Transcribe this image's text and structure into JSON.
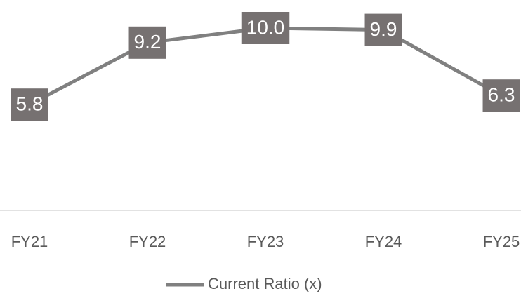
{
  "chart_data": {
    "type": "line",
    "categories": [
      "FY21",
      "FY22",
      "FY23",
      "FY24",
      "FY25"
    ],
    "series": [
      {
        "name": "Current Ratio (x)",
        "color": "#808080",
        "values": [
          5.8,
          9.2,
          10.0,
          9.9,
          6.3
        ],
        "value_labels": [
          "5.8",
          "9.2",
          "10.0",
          "9.9",
          "6.3"
        ]
      }
    ],
    "ylim": [
      0,
      11
    ],
    "label_box_color": "#767171",
    "legend": "bottom"
  }
}
